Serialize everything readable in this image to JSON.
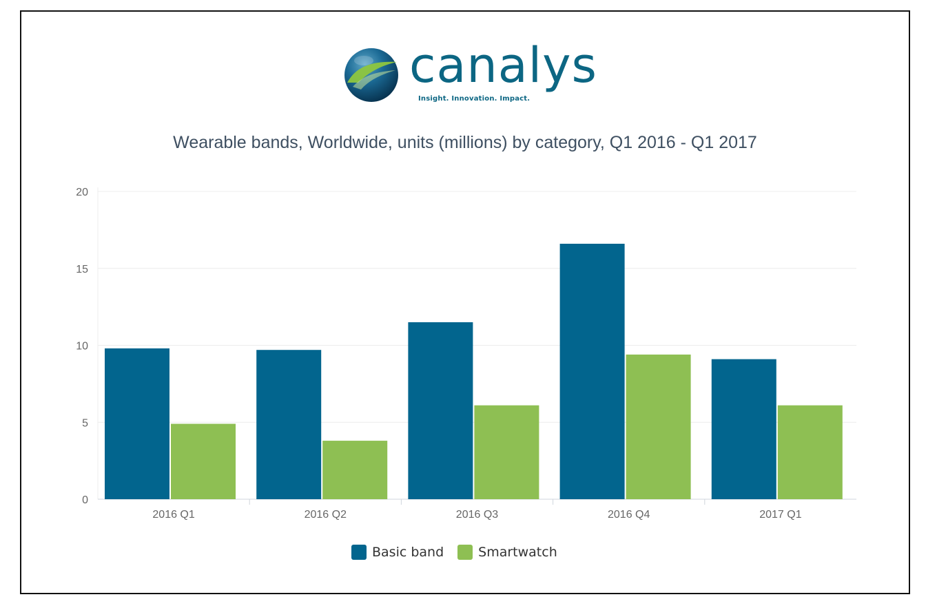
{
  "logo": {
    "wordmark": "canalys",
    "tagline": "Insight. Innovation. Impact.",
    "brand_color": "#0c6683",
    "globe_light": "#8ec63f",
    "globe_dark": "#073a5a"
  },
  "chart_data": {
    "type": "bar",
    "title": "Wearable bands, Worldwide, units (millions) by category, Q1 2016 - Q1 2017",
    "xlabel": "",
    "ylabel": "",
    "categories": [
      "2016 Q1",
      "2016 Q2",
      "2016 Q3",
      "2016 Q4",
      "2017 Q1"
    ],
    "series": [
      {
        "name": "Basic band",
        "color": "#02658e",
        "values": [
          9.8,
          9.7,
          11.5,
          16.6,
          9.1
        ]
      },
      {
        "name": "Smartwatch",
        "color": "#8ebf53",
        "values": [
          4.9,
          3.8,
          6.1,
          9.4,
          6.1
        ]
      }
    ],
    "ylim": [
      0,
      20
    ],
    "yticks": [
      "0",
      "5",
      "10",
      "15",
      "20"
    ],
    "grid": true,
    "legend_position": "bottom",
    "colors": {
      "title": "#3e4f61",
      "tick_label": "#666666",
      "gridline": "#ececec",
      "axis": "#cfd6dc"
    }
  }
}
